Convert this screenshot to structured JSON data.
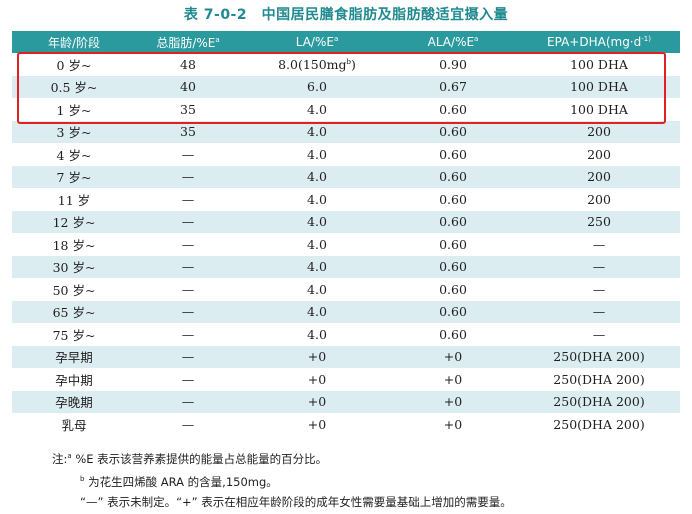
{
  "title": "表 7-0-2　中国居民膳食脂肪及脂肪酸适宜摄入量",
  "headers": [
    "年龄/阶段",
    "总脂肪/%E",
    "LA/%E",
    "ALA/%E",
    "EPA+DHA(mg·d",
    "a",
    "a",
    "a",
    "-1)"
  ],
  "rows": [
    [
      "0 岁~",
      "48",
      "8.0(150mg",
      "0.90",
      "100 DHA",
      "b",
      ")"
    ],
    [
      "0.5 岁~",
      "40",
      "6.0",
      "0.67",
      "100 DHA"
    ],
    [
      "1 岁~",
      "35",
      "4.0",
      "0.60",
      "100 DHA"
    ],
    [
      "3 岁~",
      "35",
      "4.0",
      "0.60",
      "200"
    ],
    [
      "4 岁~",
      "—",
      "4.0",
      "0.60",
      "200"
    ],
    [
      "7 岁~",
      "—",
      "4.0",
      "0.60",
      "200"
    ],
    [
      "11 岁",
      "—",
      "4.0",
      "0.60",
      "200"
    ],
    [
      "12 岁~",
      "—",
      "4.0",
      "0.60",
      "250"
    ],
    [
      "18 岁~",
      "—",
      "4.0",
      "0.60",
      "—"
    ],
    [
      "30 岁~",
      "—",
      "4.0",
      "0.60",
      "—"
    ],
    [
      "50 岁~",
      "—",
      "4.0",
      "0.60",
      "—"
    ],
    [
      "65 岁~",
      "—",
      "4.0",
      "0.60",
      "—"
    ],
    [
      "75 岁~",
      "—",
      "4.0",
      "0.60",
      "—"
    ],
    [
      "孕早期",
      "—",
      "+0",
      "+0",
      "250(DHA 200)"
    ],
    [
      "孕中期",
      "—",
      "+0",
      "+0",
      "250(DHA 200)"
    ],
    [
      "孕晚期",
      "—",
      "+0",
      "+0",
      "250(DHA 200)"
    ],
    [
      "乳母",
      "—",
      "+0",
      "+0",
      "250(DHA 200)"
    ]
  ],
  "notes": {
    "prefix": "注:",
    "sup_a": "a",
    "note1": " %E 表示该营养素提供的能量占总能量的百分比。",
    "sup_b": "b",
    "note2": " 为花生四烯酸 ARA 的含量,150mg。",
    "note3": "“—” 表示未制定。“+” 表示在相应年龄阶段的成年女性需要量基础上增加的需要量。"
  },
  "colors": {
    "header_bg": "#2a9a9e",
    "stripe_bg": "#dcedf1",
    "highlight_border": "#e32020",
    "title_color": "#1f8a8f"
  }
}
